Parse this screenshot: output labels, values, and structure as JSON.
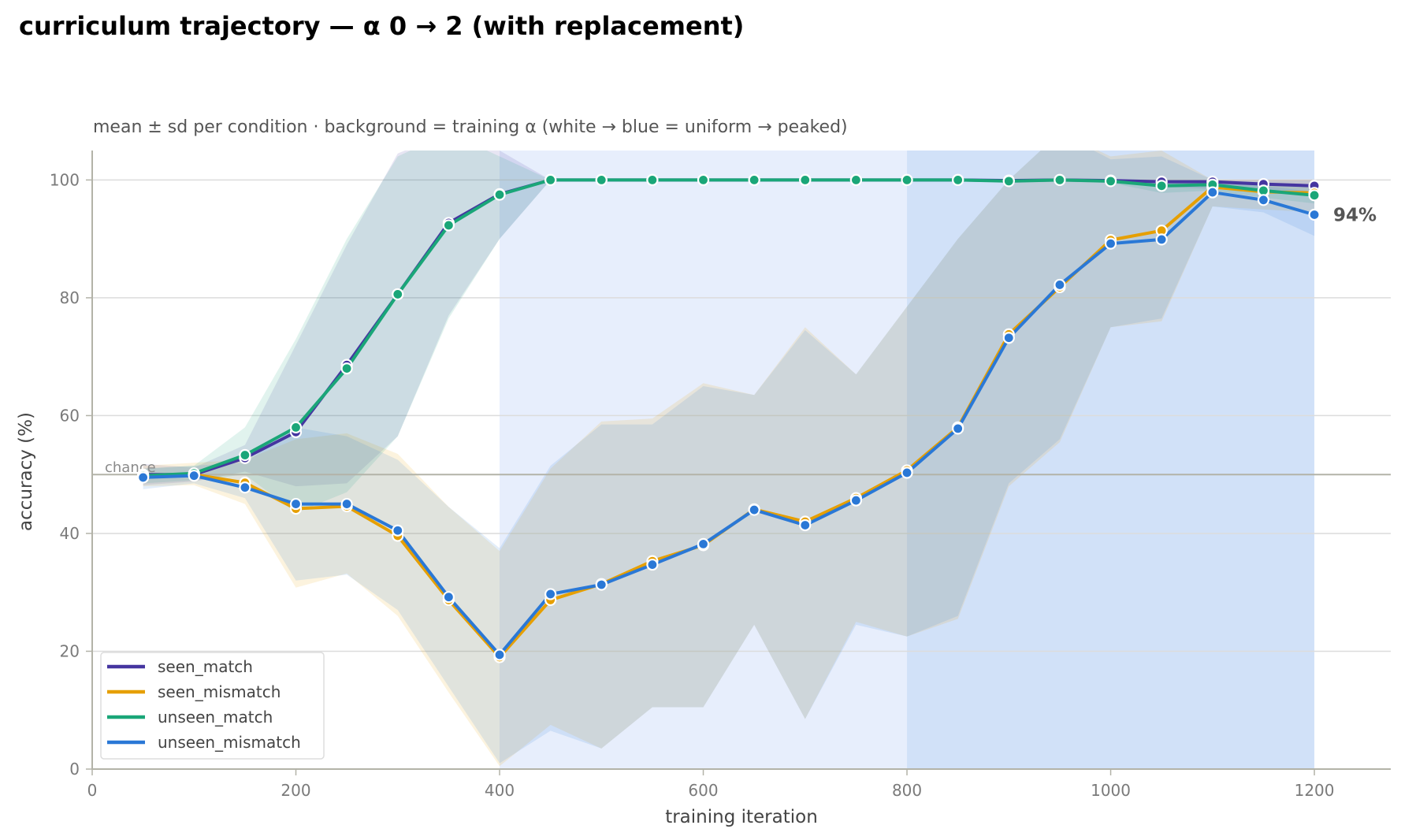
{
  "chart_data": {
    "type": "line",
    "title": "curriculum trajectory — α 0 → 2 (with replacement)",
    "subtitle": "mean ± sd per condition · background = training α (white → blue = uniform → peaked)",
    "xlabel": "training iteration",
    "ylabel": "accuracy (%)",
    "xlim": [
      0,
      1275
    ],
    "ylim": [
      0,
      105
    ],
    "xticks": [
      0,
      200,
      400,
      600,
      800,
      1000,
      1200
    ],
    "yticks": [
      0,
      20,
      40,
      60,
      80,
      100
    ],
    "grid": "horizontal",
    "legend_position": "bottom-left",
    "reference_line": {
      "value": 50,
      "label": "chance"
    },
    "end_annotation": {
      "label": "94%",
      "series": "unseen_mismatch"
    },
    "background_bands": [
      {
        "x_start": 400,
        "x_end": 800,
        "color": "#e7eefc"
      },
      {
        "x_start": 800,
        "x_end": 1200,
        "color": "#d1e1f8"
      }
    ],
    "x": [
      50,
      100,
      150,
      200,
      250,
      300,
      350,
      400,
      450,
      500,
      550,
      600,
      650,
      700,
      750,
      800,
      850,
      900,
      950,
      1000,
      1050,
      1100,
      1150,
      1200
    ],
    "series": [
      {
        "name": "seen_match",
        "color": "#4535a0",
        "values": [
          50,
          50,
          52.8,
          57.2,
          68.6,
          80.6,
          92.7,
          97.6,
          100,
          100,
          100,
          100,
          100,
          100,
          100,
          100,
          100,
          99.9,
          100,
          99.9,
          99.7,
          99.7,
          99.3,
          99
        ],
        "sd_lower": [
          48.2,
          48.8,
          50.5,
          48.0,
          48.5,
          56.5,
          77.0,
          90.0,
          100,
          100,
          100,
          100,
          100,
          100,
          100,
          100,
          100,
          99.7,
          99.8,
          99.7,
          98.8,
          98.5,
          98.0,
          97.5
        ],
        "sd_upper": [
          51.8,
          51.2,
          55.0,
          72.0,
          89.0,
          104.5,
          108.0,
          105.0,
          100,
          100,
          100,
          100,
          100,
          100,
          100,
          100,
          100,
          100,
          100,
          100,
          100,
          100,
          100,
          100
        ]
      },
      {
        "name": "seen_mismatch",
        "color": "#e69f00",
        "values": [
          49.6,
          50,
          48.6,
          44.2,
          44.6,
          39.6,
          28.7,
          19,
          28.7,
          31.4,
          35.3,
          38,
          44.1,
          42,
          46,
          50.7,
          58,
          73.8,
          81.8,
          89.8,
          91.4,
          98.8,
          98,
          97.8
        ],
        "sd_lower": [
          48.0,
          48.2,
          45.0,
          30.8,
          33.2,
          26.0,
          13.0,
          0.5,
          7.5,
          3.5,
          10.5,
          10.5,
          24.5,
          8.5,
          25.0,
          22.5,
          25.5,
          48.0,
          55.5,
          75.0,
          76.0,
          95.5,
          95.0,
          94.5
        ],
        "sd_upper": [
          51.5,
          52.0,
          52.5,
          56.0,
          57.0,
          53.5,
          44.5,
          37.0,
          51.0,
          59.0,
          59.5,
          65.5,
          63.5,
          75.0,
          67.0,
          78.5,
          90.0,
          100,
          108.0,
          104.0,
          105.0,
          100,
          100,
          100
        ]
      },
      {
        "name": "unseen_match",
        "color": "#1aa678",
        "values": [
          49.8,
          50.2,
          53.3,
          58,
          68,
          80.6,
          92.3,
          97.5,
          100,
          100,
          100,
          100,
          100,
          100,
          100,
          100,
          100,
          99.8,
          100,
          99.8,
          99,
          99.2,
          98.2,
          97.4
        ],
        "sd_lower": [
          48.5,
          49.0,
          50.0,
          43.5,
          47.0,
          56.5,
          76.5,
          90.0,
          100,
          100,
          100,
          100,
          100,
          100,
          100,
          100,
          100,
          99.5,
          99.7,
          99.5,
          97.8,
          98.2,
          97.0,
          96.0
        ],
        "sd_upper": [
          51.0,
          51.5,
          58.0,
          73.0,
          90.0,
          104.0,
          108.0,
          104.0,
          100,
          100,
          100,
          100,
          100,
          100,
          100,
          100,
          100,
          100,
          100,
          100,
          100,
          100,
          99.5,
          99.0
        ]
      },
      {
        "name": "unseen_mismatch",
        "color": "#2a78d6",
        "values": [
          49.5,
          49.8,
          47.8,
          45,
          45,
          40.5,
          29.2,
          19.4,
          29.7,
          31.3,
          34.7,
          38.2,
          44,
          41.4,
          45.6,
          50.3,
          57.8,
          73.2,
          82.2,
          89.2,
          89.9,
          97.9,
          96.6,
          94.1
        ],
        "sd_lower": [
          47.5,
          48.5,
          46.0,
          32.0,
          33.0,
          27.0,
          14.0,
          1.0,
          6.5,
          3.5,
          10.5,
          10.5,
          24.5,
          8.5,
          24.5,
          22.5,
          26.0,
          48.5,
          56.0,
          75.0,
          76.5,
          95.5,
          94.5,
          90.5
        ],
        "sd_upper": [
          51.0,
          51.5,
          52.0,
          58.0,
          56.5,
          52.5,
          44.5,
          37.5,
          51.5,
          58.5,
          58.5,
          65.0,
          63.5,
          74.5,
          67.0,
          78.5,
          90.0,
          100,
          108.0,
          103.5,
          104.0,
          100,
          99.0,
          98.0
        ]
      }
    ]
  }
}
